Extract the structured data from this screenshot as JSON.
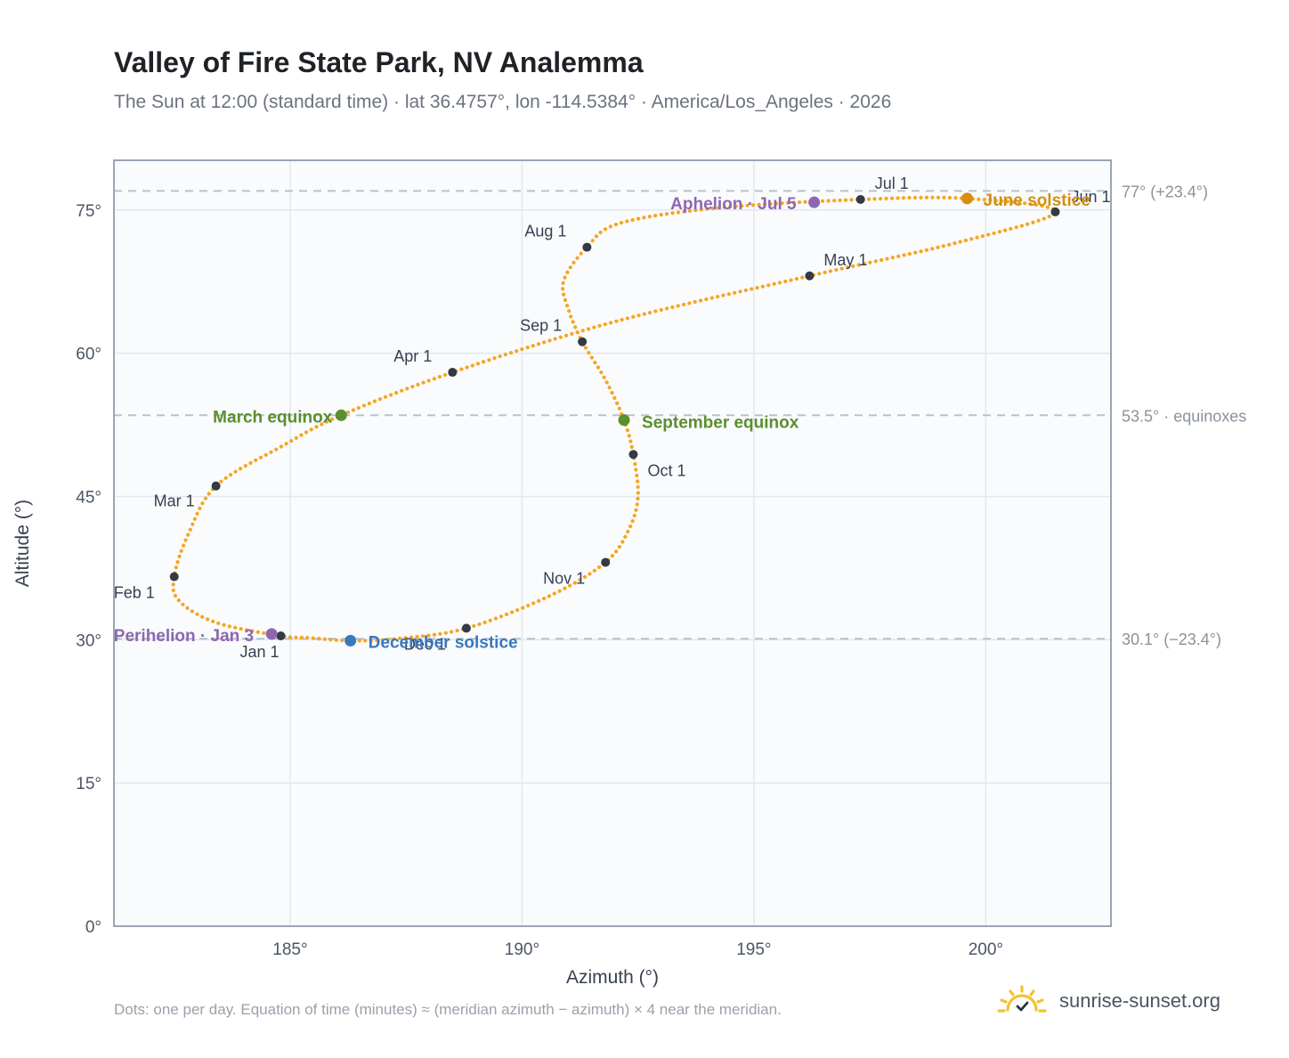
{
  "title": "Valley of Fire State Park, NV Analemma",
  "subtitle": "The Sun at 12:00 (standard time) · lat 36.4757°, lon -114.5384° · America/Los_Angeles · 2026",
  "footer": "Dots: one per day. Equation of time (minutes) ≈ (meridian azimuth − azimuth) × 4 near the meridian.",
  "brand": {
    "text": "sunrise-sunset.org",
    "icon": "sun-logo-icon"
  },
  "colors": {
    "path": "#f5a623",
    "month_dot": "#333a44",
    "equinox": "#5a8f2e",
    "june_solstice": "#d4900f",
    "december_solstice": "#3a78bc",
    "apsis": "#8e67b0",
    "reference_line": "#b8c2ce",
    "grid": "#e3e8ee",
    "plot_bg": "#f9fbfd",
    "frame": "#9aa5b4"
  },
  "chart_data": {
    "type": "scatter",
    "xlabel": "Azimuth (°)",
    "ylabel": "Altitude (°)",
    "xlim": [
      181.2,
      202.7
    ],
    "ylim": [
      0,
      80.2
    ],
    "x_ticks": [
      185,
      190,
      195,
      200
    ],
    "x_tick_labels": [
      "185°",
      "190°",
      "195°",
      "200°"
    ],
    "y_ticks": [
      0,
      15,
      30,
      45,
      60,
      75
    ],
    "y_tick_labels": [
      "0°",
      "15°",
      "30°",
      "45°",
      "60°",
      "75°"
    ],
    "grid": true,
    "reference_lines": [
      {
        "y": 77.0,
        "label": "77° (+23.4°)"
      },
      {
        "y": 53.5,
        "label": "53.5° · equinoxes"
      },
      {
        "y": 30.1,
        "label": "30.1° (−23.4°)"
      }
    ],
    "month_markers": [
      {
        "label": "Jan 1",
        "x": 184.8,
        "y": 30.4
      },
      {
        "label": "Feb 1",
        "x": 182.5,
        "y": 36.6
      },
      {
        "label": "Mar 1",
        "x": 183.4,
        "y": 46.1
      },
      {
        "label": "Apr 1",
        "x": 188.5,
        "y": 58.0
      },
      {
        "label": "May 1",
        "x": 196.2,
        "y": 68.1
      },
      {
        "label": "Jun 1",
        "x": 201.5,
        "y": 74.8
      },
      {
        "label": "Jul 1",
        "x": 197.3,
        "y": 76.1
      },
      {
        "label": "Aug 1",
        "x": 191.4,
        "y": 71.1
      },
      {
        "label": "Sep 1",
        "x": 191.3,
        "y": 61.2
      },
      {
        "label": "Oct 1",
        "x": 192.4,
        "y": 49.4
      },
      {
        "label": "Nov 1",
        "x": 191.8,
        "y": 38.1
      },
      {
        "label": "Dec 1",
        "x": 188.8,
        "y": 31.2
      }
    ],
    "events": [
      {
        "label": "March equinox",
        "x": 186.1,
        "y": 53.5,
        "color": "#5a8f2e"
      },
      {
        "label": "June solstice",
        "x": 199.6,
        "y": 76.2,
        "color": "#d4900f"
      },
      {
        "label": "September equinox",
        "x": 192.2,
        "y": 53.0,
        "color": "#5a8f2e"
      },
      {
        "label": "December solstice",
        "x": 186.3,
        "y": 29.9,
        "color": "#3a78bc"
      },
      {
        "label": "Perihelion · Jan 3",
        "x": 184.6,
        "y": 30.6,
        "color": "#8e67b0"
      },
      {
        "label": "Aphelion · Jul 5",
        "x": 196.3,
        "y": 75.8,
        "color": "#8e67b0"
      }
    ],
    "daily_path": [
      [
        184.8,
        30.4
      ],
      [
        183.4,
        31.8
      ],
      [
        182.6,
        34.1
      ],
      [
        182.5,
        36.6
      ],
      [
        182.8,
        41.0
      ],
      [
        183.4,
        46.1
      ],
      [
        184.8,
        50.2
      ],
      [
        186.1,
        53.5
      ],
      [
        188.5,
        58.0
      ],
      [
        192.0,
        63.3
      ],
      [
        196.2,
        68.1
      ],
      [
        199.4,
        71.6
      ],
      [
        201.5,
        74.8
      ],
      [
        199.6,
        76.2
      ],
      [
        197.3,
        76.1
      ],
      [
        194.2,
        75.2
      ],
      [
        192.1,
        73.6
      ],
      [
        191.4,
        71.1
      ],
      [
        190.9,
        67.6
      ],
      [
        191.0,
        64.6
      ],
      [
        191.3,
        61.2
      ],
      [
        191.8,
        57.2
      ],
      [
        192.2,
        53.0
      ],
      [
        192.4,
        49.4
      ],
      [
        192.5,
        45.0
      ],
      [
        192.3,
        41.5
      ],
      [
        191.8,
        38.1
      ],
      [
        190.6,
        34.6
      ],
      [
        188.8,
        31.2
      ],
      [
        187.3,
        30.1
      ],
      [
        186.3,
        29.9
      ],
      [
        185.4,
        30.2
      ],
      [
        184.8,
        30.4
      ]
    ]
  }
}
